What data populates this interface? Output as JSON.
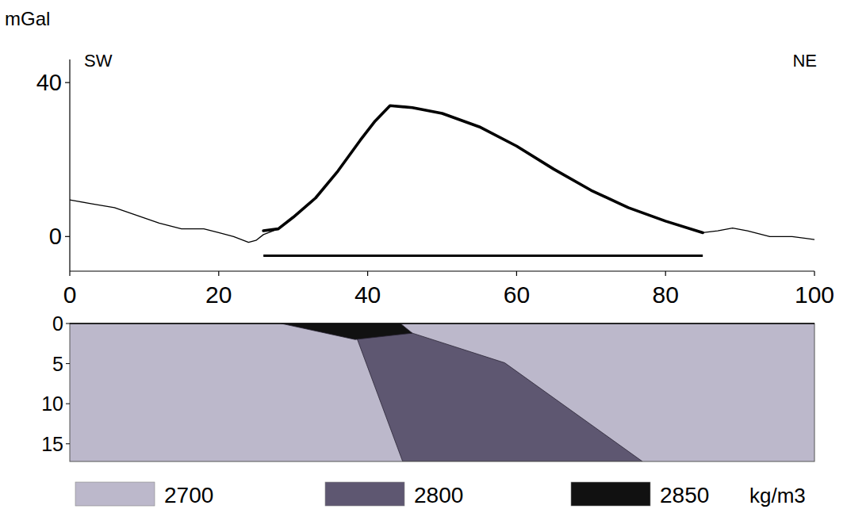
{
  "chart_data": [
    {
      "type": "line",
      "y_label": "mGal",
      "annotations": [
        "SW",
        "NE"
      ],
      "xlim": [
        0,
        100
      ],
      "xticks": [
        0,
        20,
        40,
        60,
        80,
        100
      ],
      "ylim": [
        -9,
        46
      ],
      "yticks": [
        0,
        40
      ],
      "grid": false,
      "series": [
        {
          "color": "#000000",
          "line_style": "thin",
          "x": [
            0,
            3,
            6,
            9,
            12,
            15,
            18,
            20,
            22,
            24,
            25,
            26,
            28,
            30,
            33,
            36,
            39,
            41,
            43,
            46,
            50,
            55,
            60,
            65,
            70,
            75,
            80,
            85,
            87,
            89,
            91,
            94,
            97,
            100
          ],
          "values": [
            9.5,
            8.5,
            7.5,
            5.5,
            3.5,
            2,
            2,
            1,
            0,
            -1.5,
            -1,
            0.5,
            2,
            5,
            10,
            17,
            25,
            30,
            34,
            33.5,
            32,
            28.5,
            23.5,
            17.5,
            12,
            7.5,
            4,
            1,
            1.5,
            2.2,
            1.5,
            0,
            0,
            -0.8
          ]
        },
        {
          "color": "#000000",
          "line_style": "thick",
          "x": [
            26,
            28,
            30,
            33,
            36,
            39,
            41,
            43,
            46,
            50,
            55,
            60,
            65,
            70,
            75,
            80,
            85
          ],
          "values": [
            1.5,
            2,
            5,
            10,
            17,
            25,
            30,
            34,
            33.5,
            32,
            28.5,
            23.5,
            17.5,
            12,
            7.5,
            4,
            1
          ]
        }
      ],
      "model_extent": {
        "x": [
          26,
          85
        ],
        "y": -5
      }
    },
    {
      "type": "cross_section",
      "xlim": [
        0,
        100
      ],
      "ylim": [
        0,
        17.2
      ],
      "yticks": [
        0,
        5,
        10,
        15
      ],
      "legend": "bottom",
      "legend_unit": "kg/m3",
      "bodies": [
        {
          "density": 2700,
          "color": "#bcb8cb",
          "x": [
            0,
            100,
            100,
            0
          ],
          "depth": [
            0,
            0,
            17.2,
            17.2
          ]
        },
        {
          "density": 2800,
          "color": "#5e5771",
          "x": [
            38.3,
            46,
            58.4,
            76.9,
            44.7
          ],
          "depth": [
            1.2,
            1.2,
            4.9,
            17.2,
            17.2
          ]
        },
        {
          "density": 2850,
          "color": "#111111",
          "x": [
            28.4,
            44.4,
            46,
            38.3
          ],
          "depth": [
            0,
            0,
            1.2,
            2.0
          ]
        }
      ]
    }
  ]
}
